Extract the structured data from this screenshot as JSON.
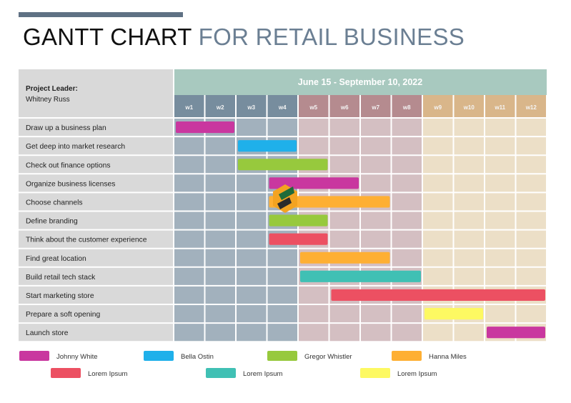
{
  "title": {
    "part1": "GANTT CHART",
    "part2": "FOR RETAIL BUSINESS"
  },
  "project": {
    "label": "Project Leader:",
    "name": "Whitney Russ"
  },
  "chart_data": {
    "type": "gantt",
    "date_range": "June 15 - September 10, 2022",
    "weeks": [
      "w1",
      "w2",
      "w3",
      "w4",
      "w5",
      "w6",
      "w7",
      "w8",
      "w9",
      "w10",
      "w11",
      "w12"
    ],
    "tasks": [
      {
        "name": "Draw up a business plan",
        "start": 1,
        "end": 2,
        "owner": 0
      },
      {
        "name": "Get deep into market research",
        "start": 3,
        "end": 4,
        "owner": 1
      },
      {
        "name": "Check out finance options",
        "start": 3,
        "end": 5,
        "owner": 2
      },
      {
        "name": "Organize business licenses",
        "start": 4,
        "end": 6,
        "owner": 0
      },
      {
        "name": "Choose channels",
        "start": 4,
        "end": 7,
        "owner": 3
      },
      {
        "name": "Define branding",
        "start": 4,
        "end": 5,
        "owner": 2
      },
      {
        "name": "Think about the customer experience",
        "start": 4,
        "end": 5,
        "owner": 4
      },
      {
        "name": "Find great location",
        "start": 5,
        "end": 7,
        "owner": 3
      },
      {
        "name": "Build retail tech stack",
        "start": 5,
        "end": 8,
        "owner": 5
      },
      {
        "name": "Start marketing store",
        "start": 6,
        "end": 12,
        "owner": 4
      },
      {
        "name": "Prepare a soft opening",
        "start": 9,
        "end": 10,
        "owner": 6
      },
      {
        "name": "Launch store",
        "start": 11,
        "end": 12,
        "owner": 0
      }
    ],
    "legend": [
      {
        "name": "Johnny White",
        "color": "#c9379f"
      },
      {
        "name": "Bella Ostin",
        "color": "#1fb0ea"
      },
      {
        "name": "Gregor Whistler",
        "color": "#97c93d"
      },
      {
        "name": "Hanna Miles",
        "color": "#feaf33"
      },
      {
        "name": "Lorem Ipsum",
        "color": "#ec5062"
      },
      {
        "name": "Lorem Ipsum",
        "color": "#40c0b4"
      },
      {
        "name": "Lorem Ipsum",
        "color": "#fdf962"
      }
    ],
    "colors": {
      "header_band": "#a8c9bf",
      "week_header": [
        "#778d9e",
        "#b58b8f",
        "#d9b68a"
      ],
      "cell": [
        "#a2b1bd",
        "#d4bfc2",
        "#ecdfc7"
      ],
      "task_label_bg": "#d9d9d9"
    }
  }
}
